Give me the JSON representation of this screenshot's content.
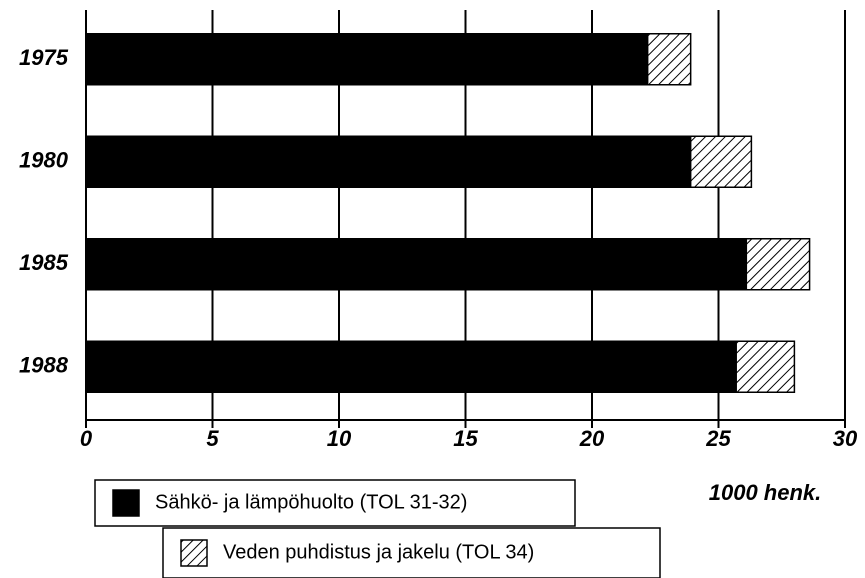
{
  "chart_data": {
    "type": "bar",
    "orientation": "horizontal",
    "stacked": true,
    "categories": [
      "1975",
      "1980",
      "1985",
      "1988"
    ],
    "series": [
      {
        "name": "Sähkö- ja lämpöhuolto (TOL 31-32)",
        "color": "#000000",
        "values": [
          22.2,
          23.9,
          26.1,
          25.7
        ]
      },
      {
        "name": "Veden puhdistus ja jakelu (TOL 34)",
        "color": "#000000",
        "pattern": "hatch",
        "values": [
          1.7,
          2.4,
          2.5,
          2.3
        ]
      }
    ],
    "xlim": [
      0,
      30
    ],
    "xticks": [
      0,
      5,
      10,
      15,
      20,
      25,
      30
    ],
    "x_label": "1000 henk.",
    "grid": true
  }
}
